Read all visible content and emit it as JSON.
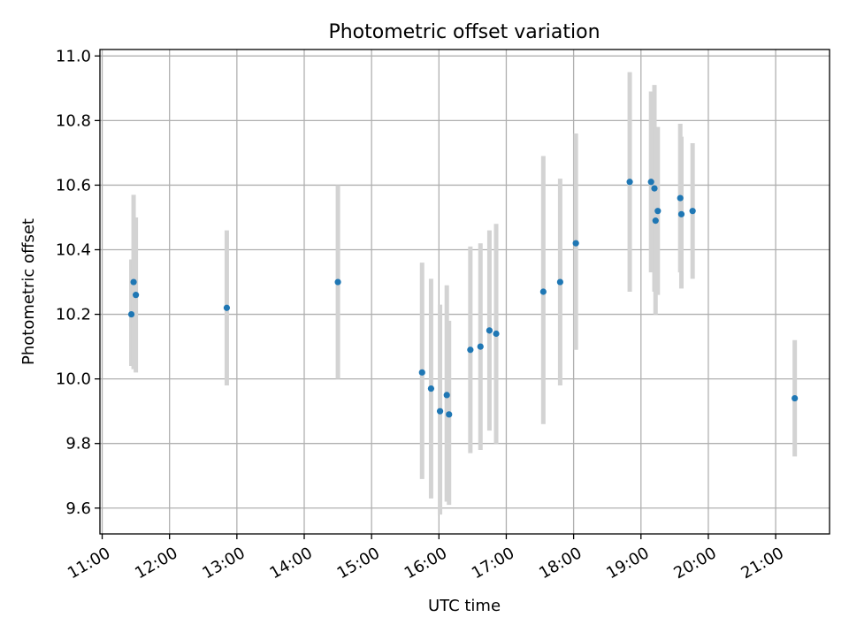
{
  "chart_data": {
    "type": "scatter",
    "title": "Photometric offset variation",
    "xlabel": "UTC time",
    "ylabel": "Photometric offset",
    "x_unit": "HH:MM",
    "xlim": [
      "10:58",
      "21:48"
    ],
    "ylim": [
      9.52,
      11.02
    ],
    "grid": true,
    "xticks": [
      "11:00",
      "12:00",
      "13:00",
      "14:00",
      "15:00",
      "16:00",
      "17:00",
      "18:00",
      "19:00",
      "20:00",
      "21:00"
    ],
    "yticks": [
      "9.6",
      "9.8",
      "10.0",
      "10.2",
      "10.4",
      "10.6",
      "10.8",
      "11.0"
    ],
    "colors": {
      "point": "#1f77b4",
      "errorbar": "#d3d3d3",
      "grid": "#b0b0b0"
    },
    "points": [
      {
        "time": "11:26",
        "y": 10.2,
        "lo": 10.04,
        "hi": 10.37
      },
      {
        "time": "11:28",
        "y": 10.3,
        "lo": 10.03,
        "hi": 10.57
      },
      {
        "time": "11:30",
        "y": 10.26,
        "lo": 10.02,
        "hi": 10.5
      },
      {
        "time": "12:51",
        "y": 10.22,
        "lo": 9.98,
        "hi": 10.46
      },
      {
        "time": "14:30",
        "y": 10.3,
        "lo": 10.0,
        "hi": 10.6
      },
      {
        "time": "15:45",
        "y": 10.02,
        "lo": 9.69,
        "hi": 10.36
      },
      {
        "time": "15:53",
        "y": 9.97,
        "lo": 9.63,
        "hi": 10.31
      },
      {
        "time": "16:01",
        "y": 9.9,
        "lo": 9.58,
        "hi": 10.23
      },
      {
        "time": "16:07",
        "y": 9.95,
        "lo": 9.62,
        "hi": 10.29
      },
      {
        "time": "16:09",
        "y": 9.89,
        "lo": 9.61,
        "hi": 10.18
      },
      {
        "time": "16:28",
        "y": 10.09,
        "lo": 9.77,
        "hi": 10.41
      },
      {
        "time": "16:37",
        "y": 10.1,
        "lo": 9.78,
        "hi": 10.42
      },
      {
        "time": "16:45",
        "y": 10.15,
        "lo": 9.84,
        "hi": 10.46
      },
      {
        "time": "16:51",
        "y": 10.14,
        "lo": 9.8,
        "hi": 10.48
      },
      {
        "time": "17:33",
        "y": 10.27,
        "lo": 9.86,
        "hi": 10.69
      },
      {
        "time": "17:48",
        "y": 10.3,
        "lo": 9.98,
        "hi": 10.62
      },
      {
        "time": "18:02",
        "y": 10.42,
        "lo": 10.09,
        "hi": 10.76
      },
      {
        "time": "18:50",
        "y": 10.61,
        "lo": 10.27,
        "hi": 10.95
      },
      {
        "time": "19:09",
        "y": 10.61,
        "lo": 10.33,
        "hi": 10.89
      },
      {
        "time": "19:12",
        "y": 10.59,
        "lo": 10.27,
        "hi": 10.91
      },
      {
        "time": "19:13",
        "y": 10.49,
        "lo": 10.2,
        "hi": 10.78
      },
      {
        "time": "19:15",
        "y": 10.52,
        "lo": 10.26,
        "hi": 10.78
      },
      {
        "time": "19:35",
        "y": 10.56,
        "lo": 10.33,
        "hi": 10.79
      },
      {
        "time": "19:36",
        "y": 10.51,
        "lo": 10.28,
        "hi": 10.75
      },
      {
        "time": "19:46",
        "y": 10.52,
        "lo": 10.31,
        "hi": 10.73
      },
      {
        "time": "21:17",
        "y": 9.94,
        "lo": 9.76,
        "hi": 10.12
      }
    ]
  }
}
